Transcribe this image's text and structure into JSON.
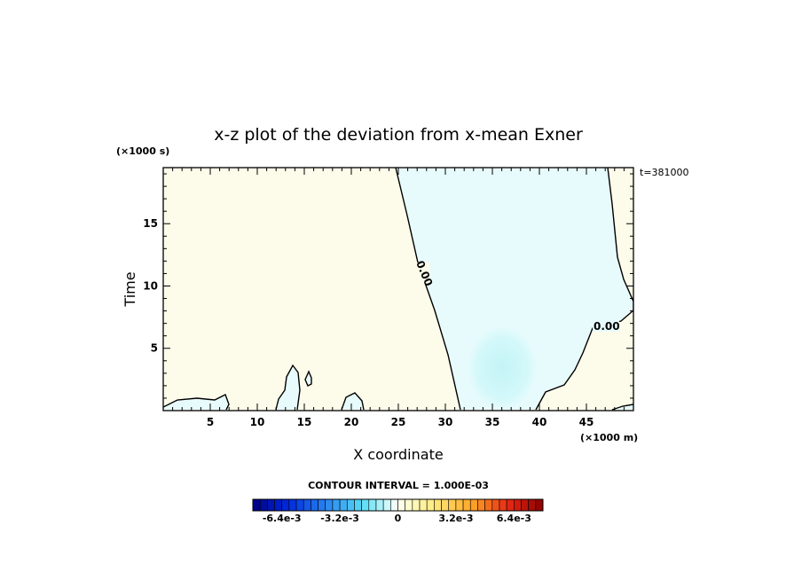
{
  "chart_data": {
    "type": "heatmap",
    "title": "x-z plot of the deviation from x-mean Exner",
    "xlabel": "X coordinate",
    "ylabel": "Time",
    "x_unit": "(×1000 m)",
    "y_unit": "(×1000 s)",
    "time_label": "t=381000",
    "xlim": [
      0,
      50
    ],
    "ylim": [
      0,
      19.5
    ],
    "xticks": [
      5,
      10,
      15,
      20,
      25,
      30,
      35,
      40,
      45
    ],
    "yticks": [
      5,
      10,
      15
    ],
    "contour_labels": [
      "0.00",
      "0.00"
    ],
    "colorbar": {
      "title": "CONTOUR INTERVAL = 1.000E-03",
      "min": -0.008,
      "max": 0.008,
      "interval": 0.001,
      "tick_labels": [
        "-6.4e-3",
        "-3.2e-3",
        "0",
        "3.2e-3",
        "6.4e-3"
      ],
      "tick_values": [
        -0.0064,
        -0.0032,
        0,
        0.0032,
        0.0064
      ]
    },
    "colors": {
      "positive_fill": "#fdfbea",
      "negative_fill": "#e8fbfc",
      "strong_negative_fill": "#ccf6f8"
    }
  }
}
